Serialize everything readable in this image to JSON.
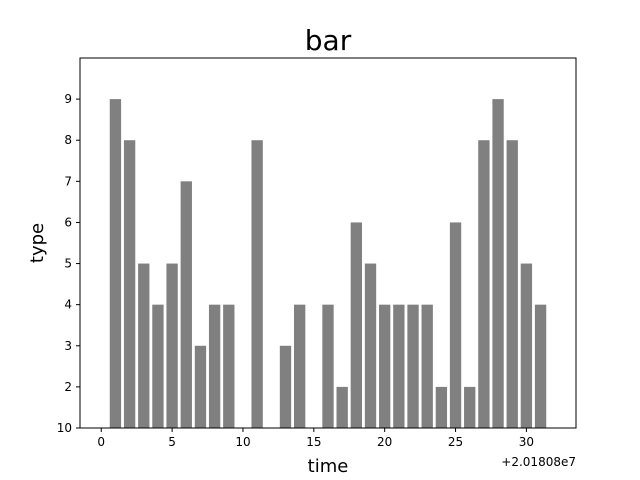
{
  "chart_data": {
    "type": "bar",
    "title": "bar",
    "xlabel": "time",
    "ylabel": "type",
    "x_offset_label": "+2.01808e7",
    "x": [
      1,
      2,
      3,
      4,
      5,
      6,
      7,
      8,
      9,
      11,
      13,
      14,
      16,
      17,
      18,
      19,
      20,
      21,
      22,
      23,
      24,
      25,
      26,
      27,
      28,
      29,
      30,
      31
    ],
    "values": [
      9,
      8,
      5,
      4,
      5,
      7,
      3,
      4,
      4,
      8,
      3,
      4,
      4,
      2,
      6,
      5,
      4,
      4,
      4,
      4,
      2,
      6,
      2,
      8,
      9,
      8,
      5,
      4
    ],
    "xlim": [
      -1.5,
      33.5
    ],
    "ylim": [
      1,
      10
    ],
    "x_ticks": [
      "0",
      "5",
      "10",
      "15",
      "20",
      "25",
      "30"
    ],
    "y_ticks": [
      "10",
      "2",
      "3",
      "4",
      "5",
      "6",
      "7",
      "8",
      "9"
    ],
    "grid": false,
    "bar_color": "#808080"
  }
}
